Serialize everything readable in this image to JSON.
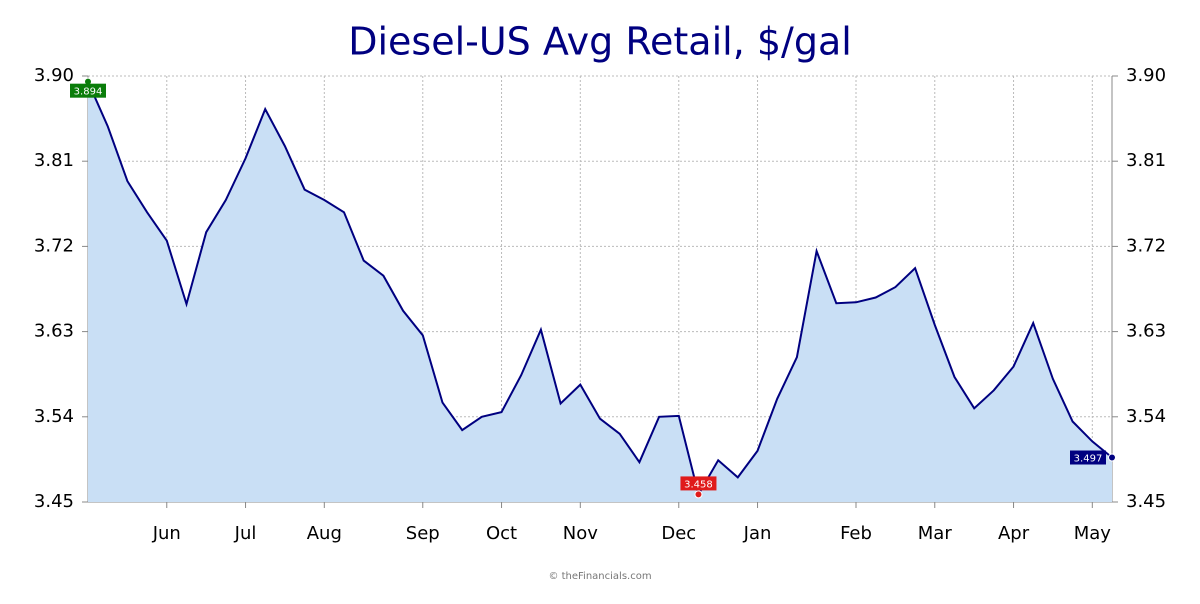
{
  "chart_data": {
    "type": "area",
    "title": "Diesel-US Avg Retail, $/gal",
    "categories": [
      null,
      null,
      null,
      null,
      "Jun",
      null,
      null,
      null,
      "Jul",
      null,
      null,
      null,
      "Aug",
      null,
      null,
      null,
      null,
      "Sep",
      null,
      null,
      null,
      "Oct",
      null,
      null,
      null,
      "Nov",
      null,
      null,
      null,
      null,
      "Dec",
      null,
      null,
      null,
      "Jan",
      null,
      null,
      null,
      null,
      "Feb",
      null,
      null,
      null,
      "Mar",
      null,
      null,
      null,
      "Apr",
      null,
      null,
      null,
      "May",
      null
    ],
    "series": [
      {
        "name": "Diesel-US Avg Retail",
        "color": "#000080",
        "fill": "#c9dff5",
        "values": [
          3.894,
          3.847,
          3.789,
          3.756,
          3.726,
          3.659,
          3.735,
          3.769,
          3.813,
          3.865,
          3.826,
          3.78,
          3.769,
          3.756,
          3.705,
          3.689,
          3.652,
          3.626,
          3.555,
          3.526,
          3.54,
          3.545,
          3.584,
          3.632,
          3.554,
          3.574,
          3.538,
          3.522,
          3.492,
          3.54,
          3.541,
          3.458,
          3.494,
          3.476,
          3.504,
          3.559,
          3.603,
          3.715,
          3.66,
          3.661,
          3.666,
          3.677,
          3.697,
          3.637,
          3.582,
          3.549,
          3.568,
          3.593,
          3.639,
          3.58,
          3.535,
          3.514,
          3.497
        ]
      }
    ],
    "ylim": [
      3.45,
      3.9
    ],
    "yticks": [
      3.45,
      3.54,
      3.63,
      3.72,
      3.81,
      {
        "value": 3.9,
        "label": "3.90"
      }
    ],
    "grid": true,
    "source": "© theFinancials.com"
  }
}
